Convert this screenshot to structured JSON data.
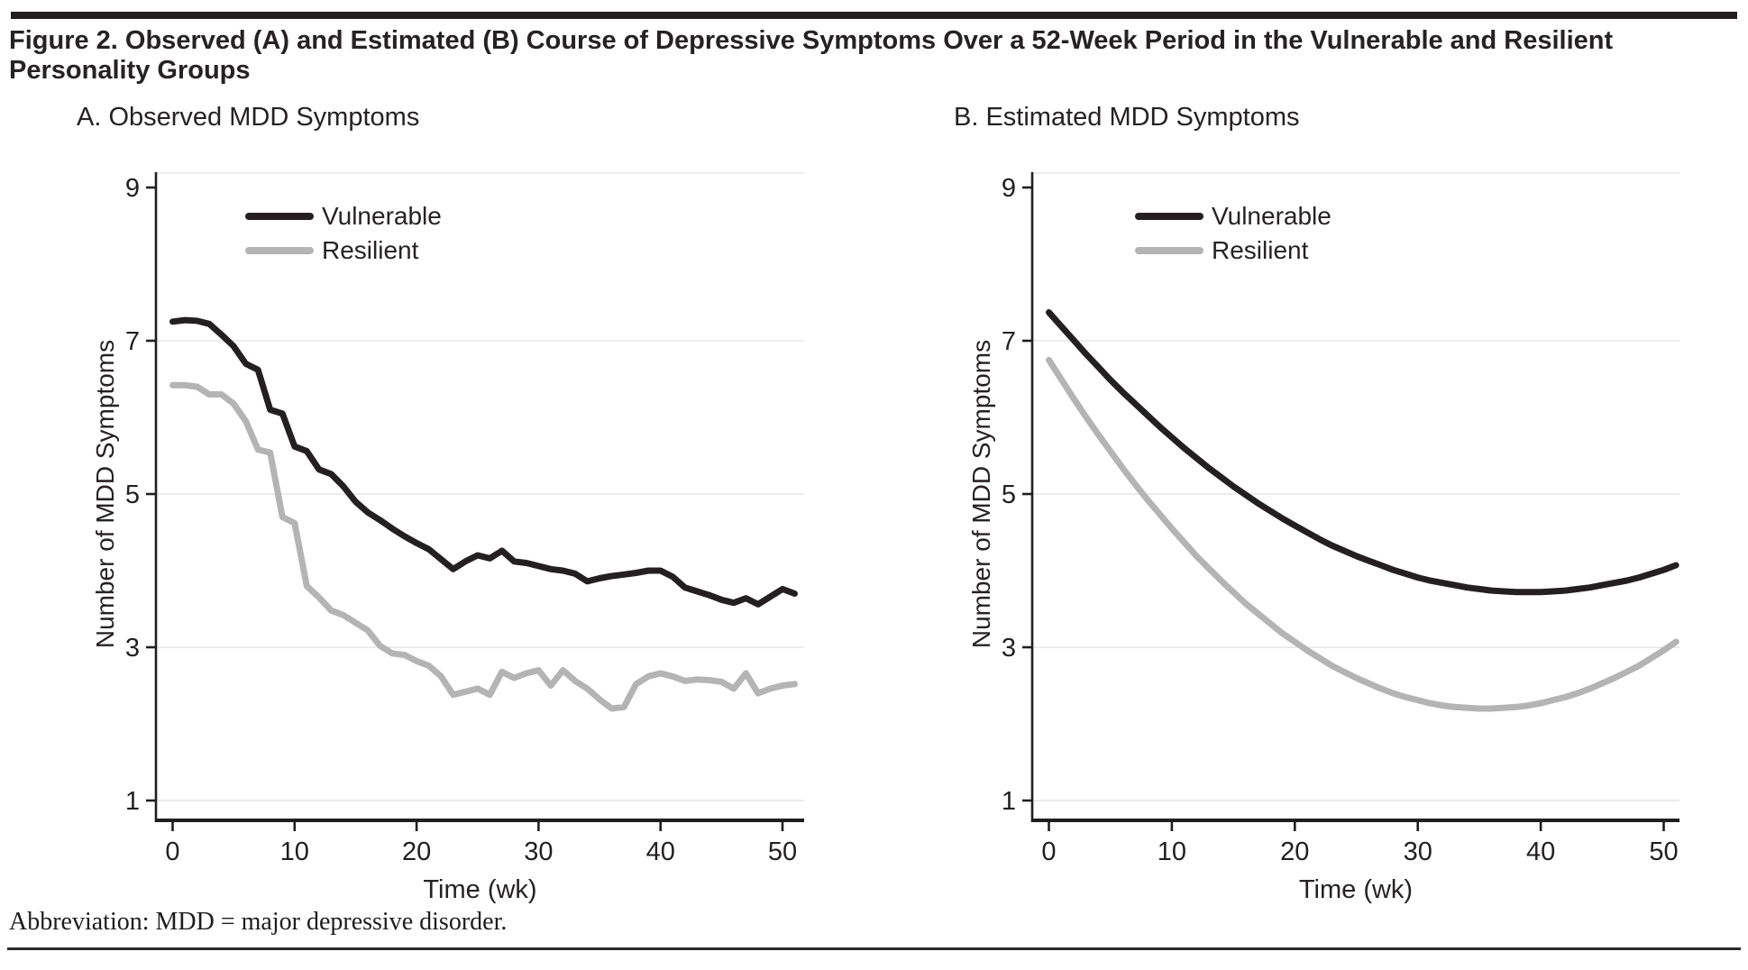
{
  "page": {
    "title": "Figure 2. Observed (A) and Estimated (B) Course of Depressive Symptoms Over a 52-Week Period in the Vulnerable and Resilient Personality Groups",
    "footer": "Abbreviation: MDD = major depressive disorder."
  },
  "colors": {
    "vulnerable": "#242021",
    "resilient": "#b4b4b4",
    "grid": "#e6e6e6",
    "axis": "#1f1f1f",
    "text": "#231f20"
  },
  "legend": {
    "items": [
      {
        "label": "Vulnerable",
        "color_key": "vulnerable"
      },
      {
        "label": "Resilient",
        "color_key": "resilient"
      }
    ]
  },
  "chart_data": [
    {
      "type": "line",
      "panel": "A",
      "title": "A. Observed MDD Symptoms",
      "xlabel": "Time (wk)",
      "ylabel": "Number of MDD Symptoms",
      "xlim": [
        0,
        52
      ],
      "ylim": [
        1,
        9
      ],
      "x_ticks": [
        0,
        10,
        20,
        30,
        40,
        50
      ],
      "y_ticks": [
        9,
        7,
        5,
        3,
        1
      ],
      "grid_values": [
        7,
        5,
        3,
        1
      ],
      "legend_position": "top-left-inside",
      "x": [
        0,
        1,
        2,
        3,
        4,
        5,
        6,
        7,
        8,
        9,
        10,
        11,
        12,
        13,
        14,
        15,
        16,
        17,
        18,
        19,
        20,
        21,
        22,
        23,
        24,
        25,
        26,
        27,
        28,
        29,
        30,
        31,
        32,
        33,
        34,
        35,
        36,
        37,
        38,
        39,
        40,
        41,
        42,
        43,
        44,
        45,
        46,
        47,
        48,
        49,
        50,
        51
      ],
      "series": [
        {
          "name": "Vulnerable",
          "values": [
            7.25,
            7.27,
            7.26,
            7.22,
            7.08,
            6.93,
            6.7,
            6.62,
            6.1,
            6.05,
            5.62,
            5.56,
            5.32,
            5.26,
            5.1,
            4.9,
            4.76,
            4.66,
            4.55,
            4.45,
            4.36,
            4.28,
            4.15,
            4.02,
            4.12,
            4.2,
            4.16,
            4.26,
            4.12,
            4.1,
            4.06,
            4.02,
            4.0,
            3.96,
            3.86,
            3.9,
            3.93,
            3.95,
            3.97,
            4.0,
            4.0,
            3.92,
            3.78,
            3.73,
            3.68,
            3.62,
            3.58,
            3.64,
            3.56,
            3.66,
            3.76,
            3.7
          ]
        },
        {
          "name": "Resilient",
          "values": [
            6.42,
            6.42,
            6.4,
            6.3,
            6.3,
            6.18,
            5.95,
            5.58,
            5.54,
            4.7,
            4.62,
            3.8,
            3.65,
            3.48,
            3.42,
            3.32,
            3.22,
            3.02,
            2.92,
            2.9,
            2.82,
            2.76,
            2.62,
            2.38,
            2.42,
            2.46,
            2.38,
            2.68,
            2.6,
            2.66,
            2.7,
            2.5,
            2.7,
            2.56,
            2.46,
            2.32,
            2.2,
            2.22,
            2.52,
            2.62,
            2.66,
            2.62,
            2.56,
            2.58,
            2.57,
            2.55,
            2.46,
            2.66,
            2.4,
            2.46,
            2.5,
            2.52
          ]
        }
      ]
    },
    {
      "type": "line",
      "panel": "B",
      "title": "B. Estimated MDD Symptoms",
      "xlabel": "Time (wk)",
      "ylabel": "Number of MDD Symptoms",
      "xlim": [
        0,
        52
      ],
      "ylim": [
        1,
        9
      ],
      "x_ticks": [
        0,
        10,
        20,
        30,
        40,
        50
      ],
      "y_ticks": [
        9,
        7,
        5,
        3,
        1
      ],
      "grid_values": [
        7,
        5,
        3,
        1
      ],
      "legend_position": "top-left-inside",
      "x": [
        0,
        1,
        2,
        3,
        4,
        5,
        6,
        7,
        8,
        9,
        10,
        11,
        12,
        13,
        14,
        15,
        16,
        17,
        18,
        19,
        20,
        21,
        22,
        23,
        24,
        25,
        26,
        27,
        28,
        29,
        30,
        31,
        32,
        33,
        34,
        35,
        36,
        37,
        38,
        39,
        40,
        41,
        42,
        43,
        44,
        45,
        46,
        47,
        48,
        49,
        50,
        51
      ],
      "series": [
        {
          "name": "Vulnerable",
          "values": [
            7.37,
            7.19,
            7.01,
            6.83,
            6.66,
            6.49,
            6.33,
            6.18,
            6.03,
            5.88,
            5.74,
            5.6,
            5.47,
            5.34,
            5.22,
            5.1,
            4.99,
            4.88,
            4.78,
            4.68,
            4.59,
            4.5,
            4.41,
            4.33,
            4.26,
            4.19,
            4.13,
            4.07,
            4.01,
            3.96,
            3.91,
            3.87,
            3.84,
            3.81,
            3.78,
            3.76,
            3.74,
            3.73,
            3.72,
            3.72,
            3.72,
            3.73,
            3.74,
            3.76,
            3.78,
            3.81,
            3.84,
            3.87,
            3.91,
            3.96,
            4.01,
            4.07
          ]
        },
        {
          "name": "Resilient",
          "values": [
            6.75,
            6.5,
            6.25,
            6.01,
            5.78,
            5.56,
            5.34,
            5.13,
            4.93,
            4.74,
            4.55,
            4.37,
            4.19,
            4.03,
            3.87,
            3.72,
            3.57,
            3.44,
            3.31,
            3.18,
            3.07,
            2.96,
            2.86,
            2.76,
            2.68,
            2.6,
            2.53,
            2.46,
            2.4,
            2.35,
            2.31,
            2.27,
            2.24,
            2.22,
            2.21,
            2.2,
            2.2,
            2.21,
            2.22,
            2.24,
            2.27,
            2.31,
            2.35,
            2.4,
            2.46,
            2.53,
            2.6,
            2.68,
            2.76,
            2.86,
            2.96,
            3.07
          ]
        }
      ]
    }
  ]
}
